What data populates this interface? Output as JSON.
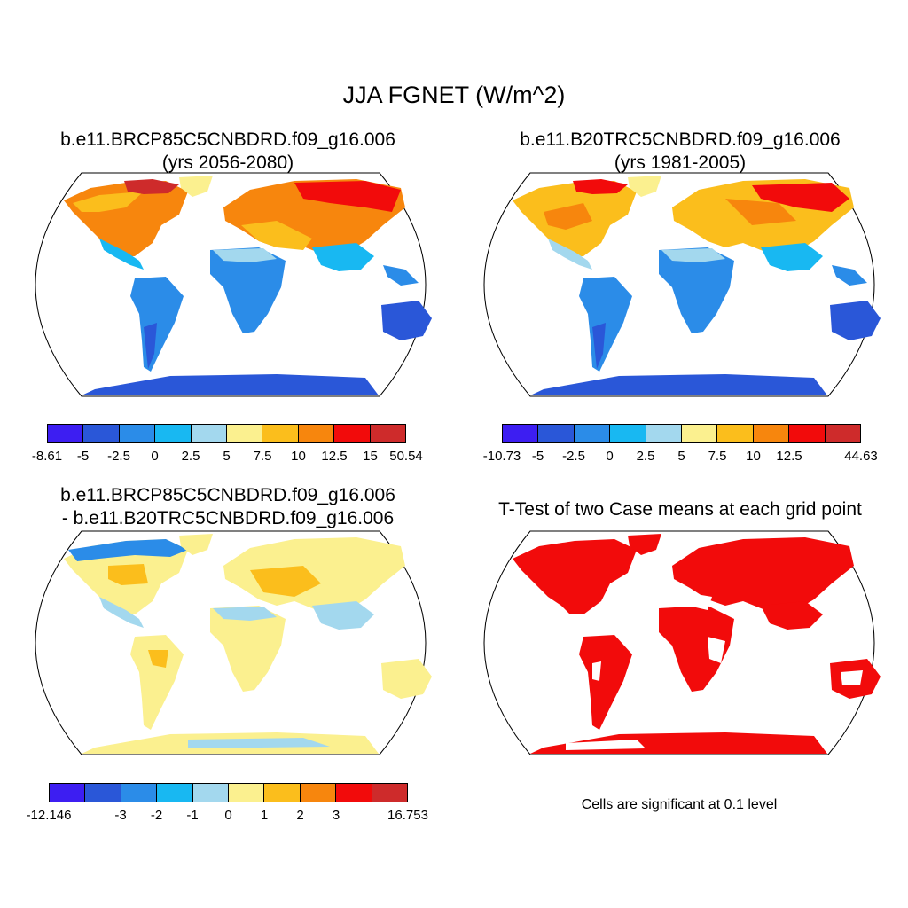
{
  "title": "JJA FGNET (W/m^2)",
  "colors": [
    "#3d1ef2",
    "#2a57d8",
    "#2b8ce8",
    "#18b8f2",
    "#a3d8ee",
    "#fbf08f",
    "#fbbe1c",
    "#f7860d",
    "#f20b0b",
    "#ce2b2b"
  ],
  "panels": {
    "p1": {
      "title_line1": "b.e11.BRCP85C5CNBDRD.f09_g16.006",
      "title_line2": "(yrs 2056-2080)",
      "ticks": [
        "-8.61",
        "-5",
        "-2.5",
        "0",
        "2.5",
        "5",
        "7.5",
        "10",
        "12.5",
        "15",
        "50.54"
      ]
    },
    "p2": {
      "title_line1": "b.e11.B20TRC5CNBDRD.f09_g16.006",
      "title_line2": "(yrs 1981-2005)",
      "ticks": [
        "-10.73",
        "-5",
        "-2.5",
        "0",
        "2.5",
        "5",
        "7.5",
        "10",
        "12.5",
        "",
        "44.63"
      ]
    },
    "p3": {
      "title_line1": "b.e11.BRCP85C5CNBDRD.f09_g16.006",
      "title_line2": "- b.e11.B20TRC5CNBDRD.f09_g16.006",
      "ticks": [
        "-12.146",
        "",
        "-3",
        "-2",
        "-1",
        "0",
        "1",
        "2",
        "3",
        "",
        "16.753"
      ]
    },
    "p4": {
      "title": "T-Test of two Case means at each grid point",
      "note": "Cells are significant at 0.1 level"
    }
  }
}
